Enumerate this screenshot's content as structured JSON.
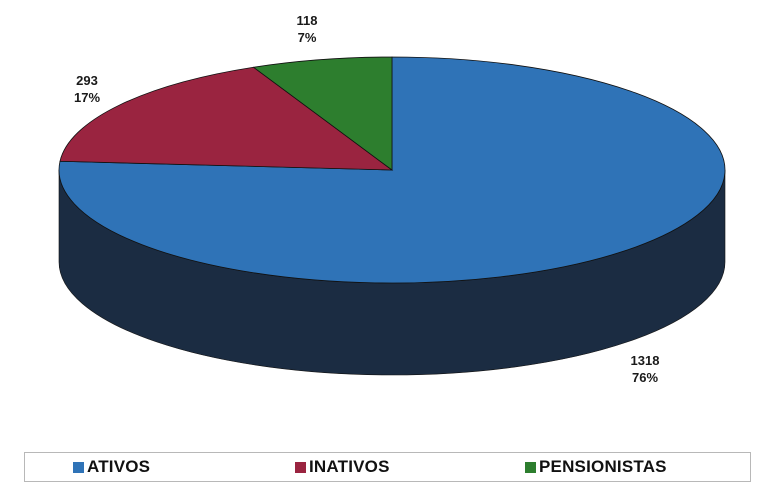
{
  "chart_data": {
    "type": "pie",
    "variant": "3d",
    "slices": [
      {
        "label": "ATIVOS",
        "value": 1318,
        "percent": "76%",
        "color": "#2f73b7",
        "side_color": "#1b2c42"
      },
      {
        "label": "INATIVOS",
        "value": 293,
        "percent": "17%",
        "color": "#9a2440",
        "side_color": "#5d1628"
      },
      {
        "label": "PENSIONISTAS",
        "value": 118,
        "percent": "7%",
        "color": "#2d7e2e",
        "side_color": "#1a4a1b"
      }
    ],
    "data_labels": [
      {
        "value_text": "1318",
        "percent_text": "76%"
      },
      {
        "value_text": "293",
        "percent_text": "17%"
      },
      {
        "value_text": "118",
        "percent_text": "7%"
      }
    ],
    "legend": {
      "position": "bottom",
      "entries": [
        "ATIVOS",
        "INATIVOS",
        "PENSIONISTAS"
      ]
    }
  }
}
